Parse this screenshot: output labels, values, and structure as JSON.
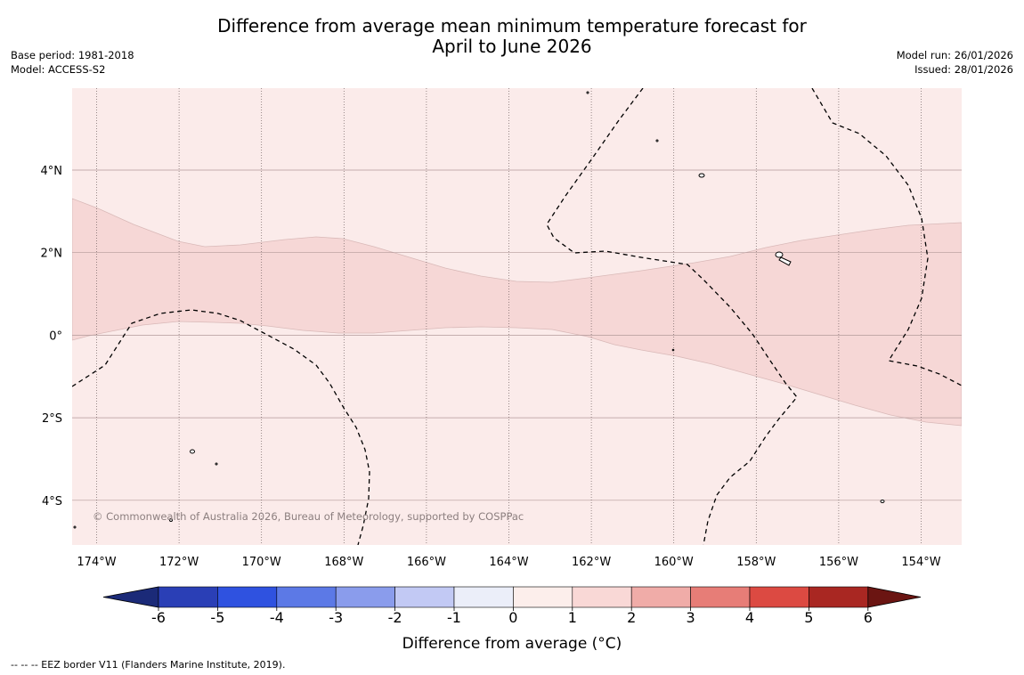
{
  "title": {
    "line1": "Difference from average mean minimum temperature forecast for",
    "line2": "April to June 2026"
  },
  "meta": {
    "base_period": "Base period: 1981-2018",
    "model": "Model: ACCESS-S2",
    "model_run": "Model run: 26/01/2026",
    "issued": "Issued: 28/01/2026"
  },
  "map": {
    "lat_labels": [
      "4°N",
      "2°N",
      "0°",
      "2°S",
      "4°S"
    ],
    "lon_labels": [
      "174°W",
      "172°W",
      "170°W",
      "168°W",
      "166°W",
      "164°W",
      "162°W",
      "160°W",
      "158°W",
      "156°W",
      "154°W"
    ],
    "copyright": "© Commonwealth of Australia 2026, Bureau of Meteorology, supported by COSPPac",
    "colors": {
      "zone_0_1": "#fbebea",
      "zone_1_2": "#f6d7d6",
      "grid": "#b39a9a",
      "border": "#000000"
    }
  },
  "colorbar": {
    "ticks": [
      "-6",
      "-5",
      "-4",
      "-3",
      "-2",
      "-1",
      "0",
      "1",
      "2",
      "3",
      "4",
      "5",
      "6"
    ],
    "colors": [
      "#1b2a78",
      "#2a3fb6",
      "#2f52e0",
      "#5c79e6",
      "#8a9cec",
      "#c2c9f4",
      "#ebeef9",
      "#fceeeb",
      "#f9d8d6",
      "#f0aca8",
      "#e77d77",
      "#dc4a42",
      "#a92722",
      "#6b1512"
    ],
    "label": "Difference from average (°C)"
  },
  "footer": {
    "legend": "-- -- -- EEZ border V11 (Flanders Marine Institute, 2019)."
  }
}
